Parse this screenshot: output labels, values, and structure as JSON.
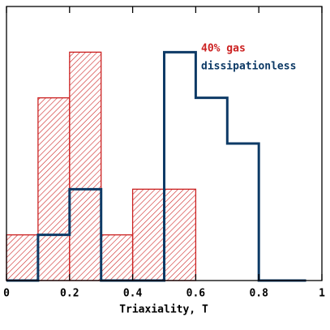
{
  "chart_data": {
    "type": "histogram",
    "xlabel": "Triaxiality, T",
    "xlim": [
      0,
      1
    ],
    "ylim": [
      0,
      6
    ],
    "xticks": [
      0,
      0.2,
      0.4,
      0.6,
      0.8,
      1
    ],
    "legend": "upper right",
    "series": [
      {
        "name": "40% gas",
        "color": "#cc2222",
        "hatch": true,
        "bins": [
          0,
          0.1,
          0.2,
          0.3,
          0.4,
          0.5,
          0.6,
          0.7,
          0.8
        ],
        "values": [
          1,
          4,
          5,
          1,
          2,
          2,
          0,
          0
        ]
      },
      {
        "name": "dissipationless",
        "color": "#0d3a66",
        "hatch": false,
        "bins": [
          0,
          0.1,
          0.2,
          0.3,
          0.4,
          0.5,
          0.6,
          0.7,
          0.8,
          0.95
        ],
        "values": [
          0,
          1,
          2,
          0,
          0,
          5,
          4,
          3,
          0
        ]
      }
    ]
  }
}
